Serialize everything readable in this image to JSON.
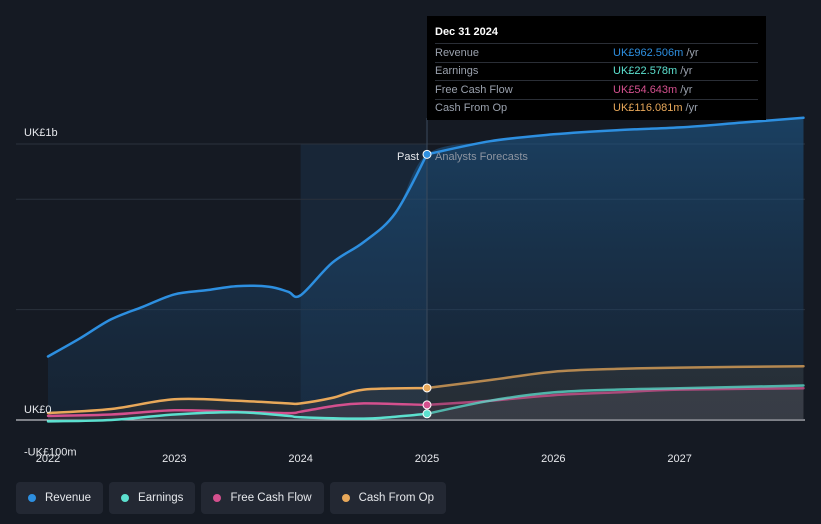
{
  "chart_data": {
    "type": "line",
    "currency_unit": "UK£m",
    "y_axis": {
      "ylim": [
        -100,
        1000
      ],
      "tick_labels": [
        {
          "value": 1000,
          "label": "UK£1b"
        },
        {
          "value": 0,
          "label": "UK£0"
        },
        {
          "value": -100,
          "label": "-UK£100m"
        }
      ]
    },
    "x_axis": {
      "xlim": [
        2021.75,
        2027.98
      ],
      "ticks": [
        {
          "value": 2022,
          "label": "2022"
        },
        {
          "value": 2023,
          "label": "2023"
        },
        {
          "value": 2024,
          "label": "2024"
        },
        {
          "value": 2025,
          "label": "2025"
        },
        {
          "value": 2026,
          "label": "2026"
        },
        {
          "value": 2027,
          "label": "2027"
        }
      ]
    },
    "past_label": "Past",
    "forecast_label": "Analysts Forecasts",
    "divider_x": 2025,
    "highlight_start_x": 2024,
    "series": [
      {
        "name": "Revenue",
        "color": "#2d8fe0",
        "area": true,
        "points": [
          [
            2022,
            230
          ],
          [
            2022.25,
            295
          ],
          [
            2022.5,
            365
          ],
          [
            2022.75,
            410
          ],
          [
            2023,
            455
          ],
          [
            2023.25,
            470
          ],
          [
            2023.5,
            485
          ],
          [
            2023.75,
            483
          ],
          [
            2023.9,
            465
          ],
          [
            2024,
            452
          ],
          [
            2024.25,
            570
          ],
          [
            2024.5,
            645
          ],
          [
            2024.75,
            750
          ],
          [
            2025,
            962.5
          ]
        ],
        "forecast": [
          [
            2025,
            962.5
          ],
          [
            2025.5,
            1010
          ],
          [
            2026,
            1035
          ],
          [
            2026.5,
            1050
          ],
          [
            2027,
            1060
          ],
          [
            2027.5,
            1078
          ],
          [
            2027.98,
            1095
          ]
        ]
      },
      {
        "name": "Earnings",
        "color": "#5ce0cf",
        "area": false,
        "points": [
          [
            2022,
            -5
          ],
          [
            2022.5,
            0
          ],
          [
            2023,
            20
          ],
          [
            2023.5,
            28
          ],
          [
            2023.9,
            15
          ],
          [
            2024,
            10
          ],
          [
            2024.5,
            5
          ],
          [
            2024.75,
            12
          ],
          [
            2025,
            22.6
          ]
        ],
        "forecast": [
          [
            2025,
            22.6
          ],
          [
            2025.5,
            70
          ],
          [
            2026,
            100
          ],
          [
            2026.5,
            110
          ],
          [
            2027,
            115
          ],
          [
            2027.98,
            125
          ]
        ]
      },
      {
        "name": "Free Cash Flow",
        "color": "#d4508e",
        "area": false,
        "points": [
          [
            2022,
            15
          ],
          [
            2022.5,
            20
          ],
          [
            2023,
            35
          ],
          [
            2023.5,
            30
          ],
          [
            2023.9,
            25
          ],
          [
            2024,
            30
          ],
          [
            2024.25,
            50
          ],
          [
            2024.5,
            60
          ],
          [
            2025,
            54.6
          ]
        ],
        "forecast": [
          [
            2025,
            54.6
          ],
          [
            2025.5,
            70
          ],
          [
            2026,
            90
          ],
          [
            2026.5,
            100
          ],
          [
            2027,
            110
          ],
          [
            2027.98,
            115
          ]
        ]
      },
      {
        "name": "Cash From Op",
        "color": "#e8a85a",
        "area": false,
        "points": [
          [
            2022,
            25
          ],
          [
            2022.5,
            40
          ],
          [
            2023,
            75
          ],
          [
            2023.5,
            70
          ],
          [
            2023.9,
            60
          ],
          [
            2024,
            60
          ],
          [
            2024.25,
            80
          ],
          [
            2024.5,
            110
          ],
          [
            2025,
            116.1
          ]
        ],
        "forecast": [
          [
            2025,
            116.1
          ],
          [
            2025.5,
            145
          ],
          [
            2026,
            175
          ],
          [
            2026.5,
            185
          ],
          [
            2027,
            190
          ],
          [
            2027.98,
            195
          ]
        ]
      }
    ]
  },
  "tooltip": {
    "date": "Dec 31 2024",
    "rows": [
      {
        "label": "Revenue",
        "value": "UK£962.506m",
        "unit": "/yr",
        "color": "#2d8fe0"
      },
      {
        "label": "Earnings",
        "value": "UK£22.578m",
        "unit": "/yr",
        "color": "#5ce0cf"
      },
      {
        "label": "Free Cash Flow",
        "value": "UK£54.643m",
        "unit": "/yr",
        "color": "#d4508e"
      },
      {
        "label": "Cash From Op",
        "value": "UK£116.081m",
        "unit": "/yr",
        "color": "#e8a85a"
      }
    ]
  },
  "legend": [
    {
      "label": "Revenue",
      "color": "#2d8fe0"
    },
    {
      "label": "Earnings",
      "color": "#5ce0cf"
    },
    {
      "label": "Free Cash Flow",
      "color": "#d4508e"
    },
    {
      "label": "Cash From Op",
      "color": "#e8a85a"
    }
  ]
}
